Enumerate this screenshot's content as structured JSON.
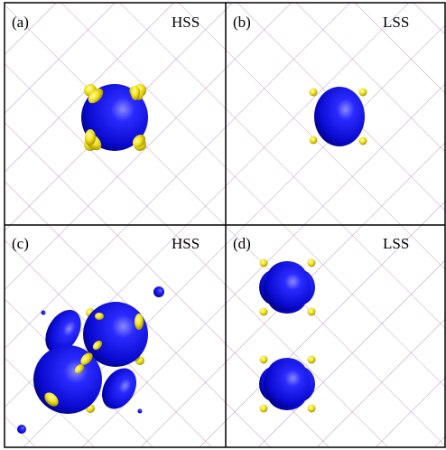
{
  "panels": [
    {
      "label": "(a)",
      "state": "HSS"
    },
    {
      "label": "(b)",
      "state": "LSS"
    },
    {
      "label": "(c)",
      "state": "HSS"
    },
    {
      "label": "(d)",
      "state": "LSS"
    }
  ]
}
